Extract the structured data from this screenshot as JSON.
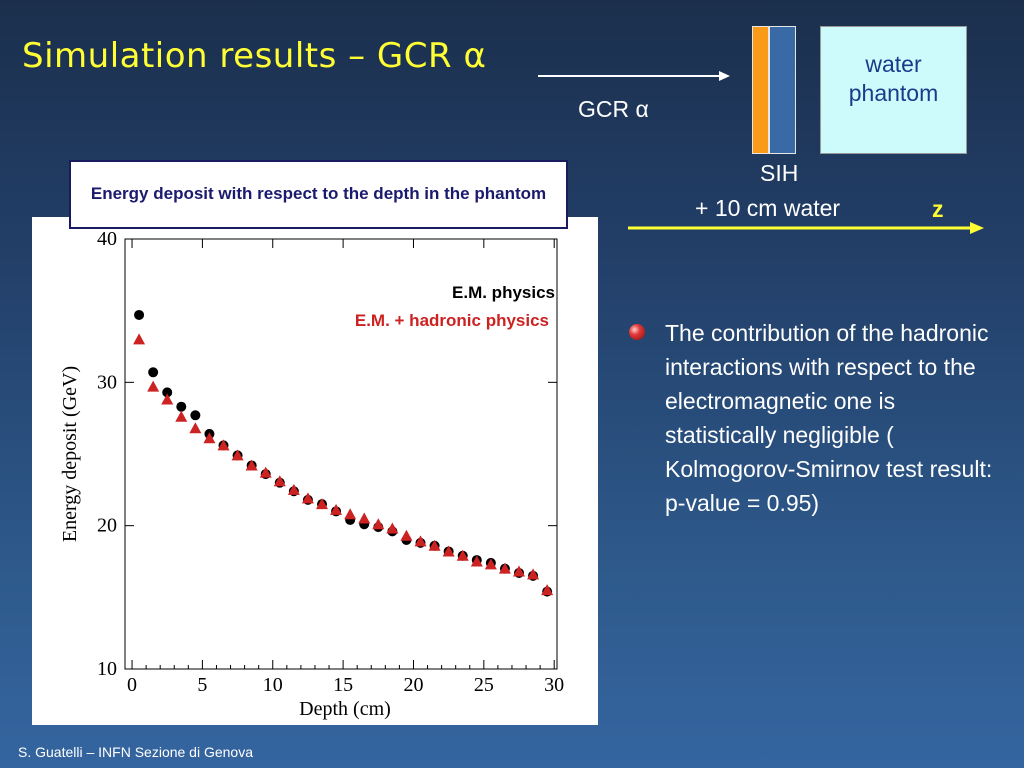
{
  "slide": {
    "title": "Simulation results – GCR α",
    "footer": "S. Guatelli – INFN Sezione di Genova"
  },
  "diagram": {
    "beam_label": "GCR α",
    "phantom_line1": "water",
    "phantom_line2": "phantom",
    "shield_label": "SIH",
    "water_label": "+ 10 cm water",
    "axis_label": "z",
    "colors": {
      "orange": "#f99a18",
      "blue": "#3a6aa5",
      "phantom": "#cdfbfb",
      "axis": "#ffff33"
    }
  },
  "plot_title": "Energy deposit  with respect to the depth in the phantom",
  "bullet": {
    "text": "The contribution of the hadronic interactions with respect to the electromagnetic one is statistically negligible ( Kolmogorov-Smirnov test result: p-value = 0.95)"
  },
  "chart_data": {
    "type": "scatter",
    "xlabel": "Depth (cm)",
    "ylabel": "Energy deposit (GeV)",
    "xlim": [
      -0.5,
      30.2
    ],
    "ylim": [
      10,
      40
    ],
    "xticks": [
      0,
      5,
      10,
      15,
      20,
      25,
      30
    ],
    "yticks": [
      10,
      20,
      30,
      40
    ],
    "legend_placement": "top-right",
    "series": [
      {
        "name": "E.M. physics",
        "marker": "circle",
        "color": "#000000",
        "x": [
          0.5,
          1.5,
          2.5,
          3.5,
          4.5,
          5.5,
          6.5,
          7.5,
          8.5,
          9.5,
          10.5,
          11.5,
          12.5,
          13.5,
          14.5,
          15.5,
          16.5,
          17.5,
          18.5,
          19.5,
          20.5,
          21.5,
          22.5,
          23.5,
          24.5,
          25.5,
          26.5,
          27.5,
          28.5,
          29.5
        ],
        "y": [
          34.7,
          30.7,
          29.3,
          28.3,
          27.7,
          26.4,
          25.6,
          24.9,
          24.2,
          23.6,
          23.0,
          22.4,
          21.8,
          21.5,
          21.0,
          20.4,
          20.1,
          19.9,
          19.6,
          19.0,
          18.8,
          18.6,
          18.2,
          17.9,
          17.6,
          17.4,
          17.0,
          16.7,
          16.5,
          15.4
        ]
      },
      {
        "name": "E.M. + hadronic physics",
        "marker": "triangle",
        "color": "#cc2222",
        "x": [
          0.5,
          1.5,
          2.5,
          3.5,
          4.5,
          5.5,
          6.5,
          7.5,
          8.5,
          9.5,
          10.5,
          11.5,
          12.5,
          13.5,
          14.5,
          15.5,
          16.5,
          17.5,
          18.5,
          19.5,
          20.5,
          21.5,
          22.5,
          23.5,
          24.5,
          25.5,
          26.5,
          27.5,
          28.5,
          29.5
        ],
        "y": [
          33.0,
          29.7,
          28.8,
          27.6,
          26.8,
          26.1,
          25.6,
          24.9,
          24.2,
          23.7,
          23.1,
          22.5,
          21.9,
          21.5,
          21.1,
          20.8,
          20.5,
          20.1,
          19.8,
          19.3,
          18.9,
          18.6,
          18.2,
          17.9,
          17.5,
          17.3,
          17.0,
          16.8,
          16.6,
          15.5
        ]
      }
    ]
  }
}
